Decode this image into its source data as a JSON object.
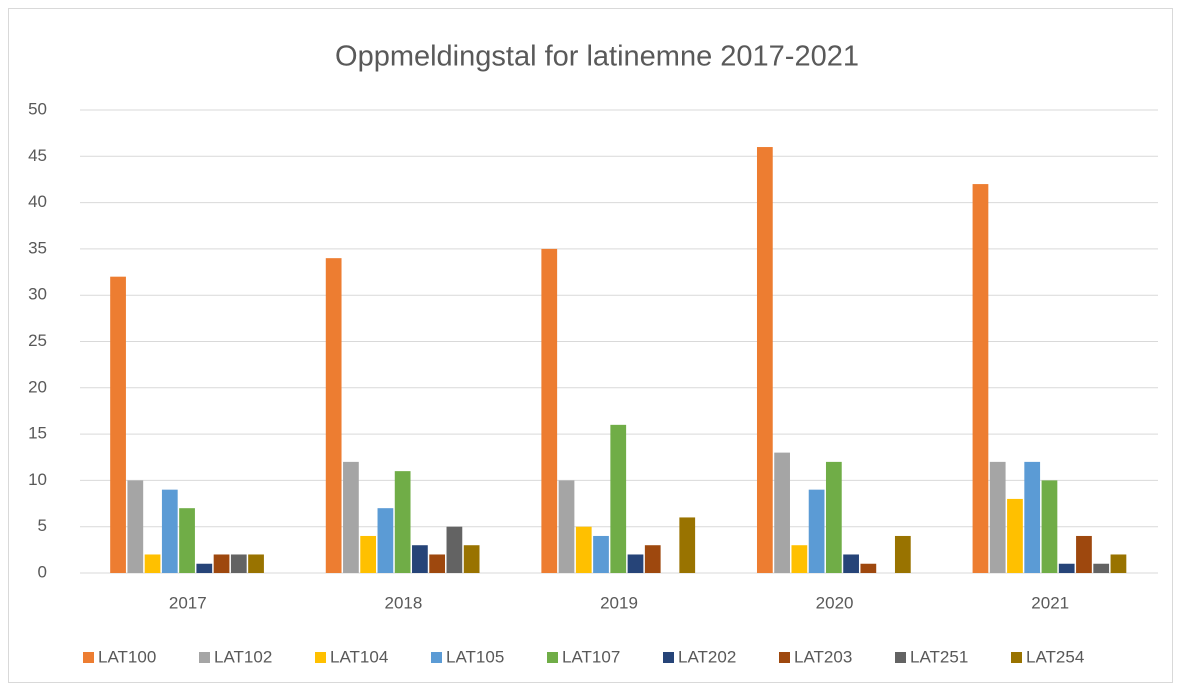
{
  "chart_data": {
    "type": "bar",
    "title": "Oppmeldingstal for latinemne 2017-2021",
    "categories": [
      "2017",
      "2018",
      "2019",
      "2020",
      "2021"
    ],
    "series": [
      {
        "name": "LAT100",
        "color": "#ed7d31",
        "values": [
          32,
          34,
          35,
          46,
          42
        ]
      },
      {
        "name": "LAT102",
        "color": "#a5a5a5",
        "values": [
          10,
          12,
          10,
          13,
          12
        ]
      },
      {
        "name": "LAT104",
        "color": "#ffc000",
        "values": [
          2,
          4,
          5,
          3,
          8
        ]
      },
      {
        "name": "LAT105",
        "color": "#5b9bd5",
        "values": [
          9,
          7,
          4,
          9,
          12
        ]
      },
      {
        "name": "LAT107",
        "color": "#70ad47",
        "values": [
          7,
          11,
          16,
          12,
          10
        ]
      },
      {
        "name": "LAT202",
        "color": "#264478",
        "values": [
          1,
          3,
          2,
          2,
          1
        ]
      },
      {
        "name": "LAT203",
        "color": "#9e480e",
        "values": [
          2,
          2,
          3,
          1,
          4
        ]
      },
      {
        "name": "LAT251",
        "color": "#636363",
        "values": [
          2,
          5,
          null,
          null,
          1
        ]
      },
      {
        "name": "LAT254",
        "color": "#997300",
        "values": [
          2,
          3,
          6,
          4,
          2
        ]
      }
    ],
    "ylim": [
      0,
      50
    ],
    "yticks": [
      0,
      5,
      10,
      15,
      20,
      25,
      30,
      35,
      40,
      45,
      50
    ],
    "grid": true,
    "legend": "bottom"
  }
}
